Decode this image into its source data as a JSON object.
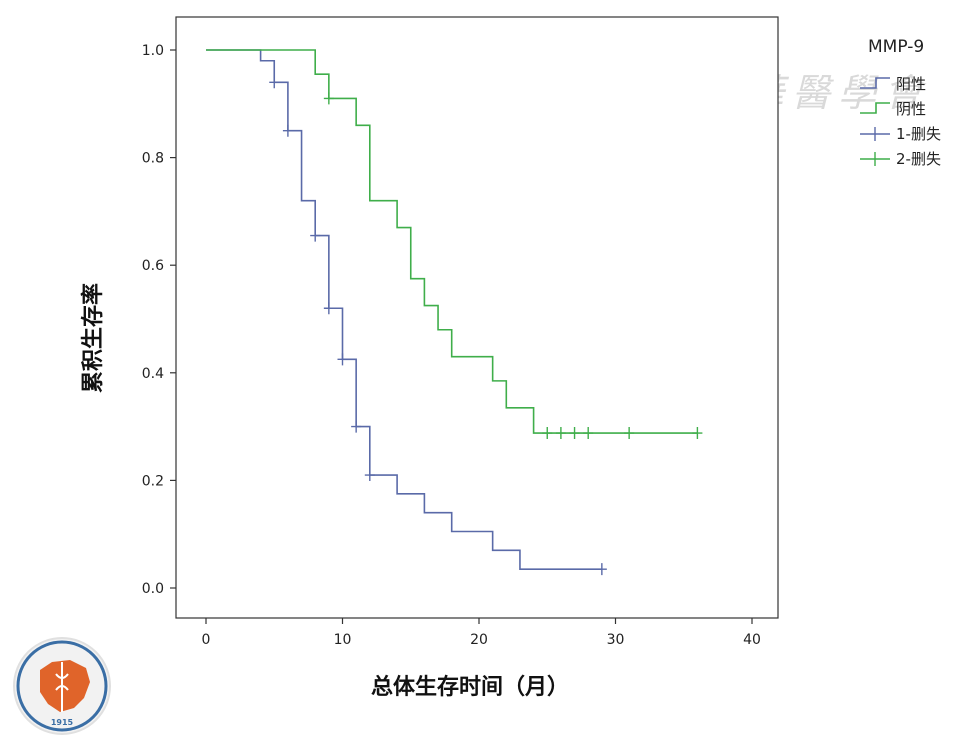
{
  "chart_data": {
    "type": "line",
    "title": "",
    "xlabel": "总体生存时间（月）",
    "ylabel": "累积生存率",
    "xlim": [
      0,
      40
    ],
    "ylim": [
      0,
      1.0
    ],
    "x_ticks": [
      0,
      10,
      20,
      30,
      40
    ],
    "y_ticks": [
      0.0,
      0.2,
      0.4,
      0.6,
      0.8,
      1.0
    ],
    "y_tick_labels": [
      "0.0",
      "0.2",
      "0.4",
      "0.6",
      "0.8",
      "1.0"
    ],
    "grid": false,
    "legend_title": "MMP-9",
    "legend_position": "top-right, outside plot",
    "series": [
      {
        "name": "阳性",
        "color": "#5a6aa8",
        "steps": [
          [
            0,
            1.0
          ],
          [
            4,
            0.98
          ],
          [
            5,
            0.94
          ],
          [
            6,
            0.85
          ],
          [
            7,
            0.72
          ],
          [
            8,
            0.655
          ],
          [
            9,
            0.52
          ],
          [
            10,
            0.425
          ],
          [
            11,
            0.3
          ],
          [
            12,
            0.21
          ],
          [
            14,
            0.175
          ],
          [
            16,
            0.14
          ],
          [
            18,
            0.105
          ],
          [
            21,
            0.07
          ],
          [
            23,
            0.035
          ],
          [
            29,
            0.035
          ]
        ],
        "censored": [
          [
            5,
            0.94
          ],
          [
            6,
            0.85
          ],
          [
            8,
            0.655
          ],
          [
            9,
            0.52
          ],
          [
            10,
            0.425
          ],
          [
            11,
            0.3
          ],
          [
            12,
            0.21
          ],
          [
            29,
            0.035
          ]
        ]
      },
      {
        "name": "阴性",
        "color": "#3fae4a",
        "steps": [
          [
            0,
            1.0
          ],
          [
            8,
            0.955
          ],
          [
            9,
            0.91
          ],
          [
            11,
            0.86
          ],
          [
            12,
            0.72
          ],
          [
            14,
            0.67
          ],
          [
            15,
            0.575
          ],
          [
            16,
            0.525
          ],
          [
            17,
            0.48
          ],
          [
            18,
            0.43
          ],
          [
            21,
            0.385
          ],
          [
            22,
            0.335
          ],
          [
            24,
            0.288
          ],
          [
            36,
            0.288
          ]
        ],
        "censored": [
          [
            9,
            0.91
          ],
          [
            25,
            0.288
          ],
          [
            26,
            0.288
          ],
          [
            27,
            0.288
          ],
          [
            28,
            0.288
          ],
          [
            31,
            0.288
          ],
          [
            36,
            0.288
          ]
        ]
      }
    ],
    "legend_entries": [
      {
        "label": "阳性",
        "kind": "line",
        "color": "#5a6aa8"
      },
      {
        "label": "阴性",
        "kind": "line",
        "color": "#3fae4a"
      },
      {
        "label": "1-删失",
        "kind": "censor",
        "color": "#5a6aa8"
      },
      {
        "label": "2-删失",
        "kind": "censor",
        "color": "#3fae4a"
      }
    ]
  },
  "watermark": {
    "text": "中華醫學會",
    "seal_text": "中华医学会",
    "seal_text_en": "CHINESE MEDICAL ASSOCIATION",
    "seal_year": "1915"
  }
}
